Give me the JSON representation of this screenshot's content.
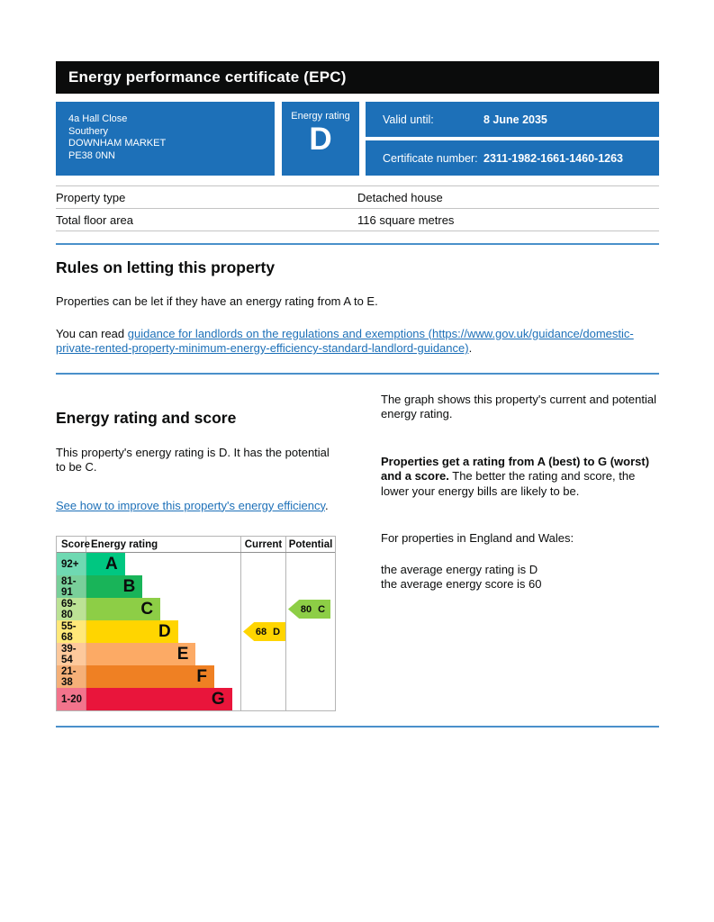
{
  "header": {
    "title": "Energy performance certificate (EPC)"
  },
  "summary": {
    "address_lines": [
      "4a Hall Close",
      "Southery",
      "DOWNHAM MARKET",
      "PE38 0NN"
    ],
    "energy_rating_label": "Energy rating",
    "energy_rating_value": "D",
    "valid_until_label": "Valid until:",
    "valid_until_value": "8 June 2035",
    "certificate_number_label": "Certificate number:",
    "certificate_number_value": "2311-1982-1661-1460-1263"
  },
  "property_table": {
    "rows": [
      {
        "label": "Property type",
        "value": "Detached house"
      },
      {
        "label": "Total floor area",
        "value": "116 square metres"
      }
    ]
  },
  "rules_section": {
    "heading": "Rules on letting this property",
    "paragraph1": "Properties can be let if they have an energy rating from A to E.",
    "paragraph2_prefix": "You can read ",
    "paragraph2_link": "guidance for landlords on the regulations and exemptions (https://www.gov.uk/guidance/domestic-private-rented-property-minimum-energy-efficiency-standard-landlord-guidance)",
    "paragraph2_suffix": "."
  },
  "rating_section": {
    "heading": "Energy rating and score",
    "paragraph1": "This property's energy rating is D. It has the potential to be C.",
    "link": "See how to improve this property's energy efficiency",
    "link_suffix": ".",
    "right_paragraph1": "The graph shows this property's current and potential energy rating.",
    "right_paragraph2_bold": "Properties get a rating from A (best) to G (worst) and a score.",
    "right_paragraph2_rest": " The better the rating and score, the lower your energy bills are likely to be.",
    "right_paragraph3": "For properties in England and Wales:",
    "average_rating_line": "the average energy rating is D",
    "average_score_line": "the average energy score is 60"
  },
  "chart_data": {
    "type": "bar",
    "title": "Energy rating and score graph",
    "columns": [
      "Score",
      "Energy rating",
      "Current",
      "Potential"
    ],
    "bands": [
      {
        "score": "92+",
        "letter": "A",
        "color": "#00c781",
        "tint": "#6fd9b2",
        "width_pct": 25
      },
      {
        "score": "81-91",
        "letter": "B",
        "color": "#19b459",
        "tint": "#79cf9a",
        "width_pct": 36.5
      },
      {
        "score": "69-80",
        "letter": "C",
        "color": "#8dce46",
        "tint": "#bce295",
        "width_pct": 48
      },
      {
        "score": "55-68",
        "letter": "D",
        "color": "#ffd500",
        "tint": "#ffe879",
        "width_pct": 59.5
      },
      {
        "score": "39-54",
        "letter": "E",
        "color": "#fcaa65",
        "tint": "#fdc99c",
        "width_pct": 71
      },
      {
        "score": "21-38",
        "letter": "F",
        "color": "#ef8023",
        "tint": "#f5b078",
        "width_pct": 83
      },
      {
        "score": "1-20",
        "letter": "G",
        "color": "#e9153b",
        "tint": "#f2748c",
        "width_pct": 94.5
      }
    ],
    "current": {
      "score": 68,
      "letter": "D",
      "band_index": 3,
      "color": "#ffd500"
    },
    "potential": {
      "score": 80,
      "letter": "C",
      "band_index": 2,
      "color": "#8dce46"
    }
  },
  "colors": {
    "accent_blue": "#1d70b8",
    "divider_blue": "#4a90ca",
    "header_black": "#0b0c0c",
    "border_gray": "#b5b5b5"
  }
}
